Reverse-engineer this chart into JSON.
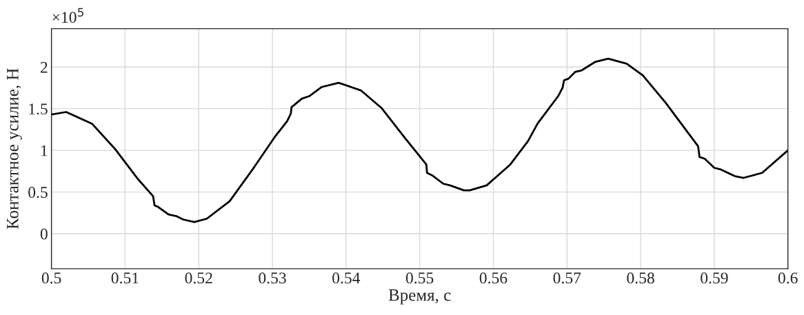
{
  "chart_data": {
    "type": "line",
    "xlabel": "Время, с",
    "ylabel": "Контактное усилие, Н",
    "annotations": [
      "×10$^{5}$"
    ],
    "x": [
      0.5,
      0.502,
      0.5055,
      0.5086,
      0.5117,
      0.5138,
      0.514,
      0.5145,
      0.5159,
      0.517,
      0.5179,
      0.5194,
      0.5211,
      0.5242,
      0.5273,
      0.5304,
      0.532,
      0.5325,
      0.5326,
      0.5329,
      0.534,
      0.535,
      0.5367,
      0.539,
      0.542,
      0.5448,
      0.5479,
      0.5509,
      0.551,
      0.5517,
      0.5532,
      0.5541,
      0.556,
      0.5568,
      0.5591,
      0.5623,
      0.5647,
      0.566,
      0.5688,
      0.5694,
      0.5696,
      0.5702,
      0.5711,
      0.572,
      0.5738,
      0.5756,
      0.5781,
      0.5803,
      0.5834,
      0.5878,
      0.588,
      0.5887,
      0.59,
      0.5909,
      0.5928,
      0.594,
      0.5965,
      0.6
    ],
    "series": [
      {
        "color": "#000000",
        "values": [
          1.43,
          1.46,
          1.32,
          1.02,
          0.66,
          0.45,
          0.34,
          0.32,
          0.23,
          0.21,
          0.17,
          0.14,
          0.18,
          0.39,
          0.77,
          1.17,
          1.35,
          1.44,
          1.52,
          1.54,
          1.62,
          1.65,
          1.76,
          1.81,
          1.72,
          1.51,
          1.16,
          0.83,
          0.73,
          0.7,
          0.6,
          0.58,
          0.52,
          0.52,
          0.58,
          0.83,
          1.11,
          1.32,
          1.65,
          1.75,
          1.84,
          1.86,
          1.94,
          1.96,
          2.06,
          2.1,
          2.04,
          1.9,
          1.57,
          1.05,
          0.92,
          0.9,
          0.79,
          0.77,
          0.69,
          0.67,
          0.73,
          1.0
        ]
      }
    ],
    "xlim": [
      0.5,
      0.6
    ],
    "xticks": [
      0.5,
      0.51,
      0.52,
      0.53,
      0.54,
      0.55,
      0.56,
      0.57,
      0.58,
      0.59,
      0.6
    ],
    "ylim": [
      -0.42,
      2.46
    ],
    "yticks": [
      0,
      0.5,
      1,
      1.5,
      2
    ],
    "grid": true,
    "marker": "none",
    "line_style": "solid"
  }
}
